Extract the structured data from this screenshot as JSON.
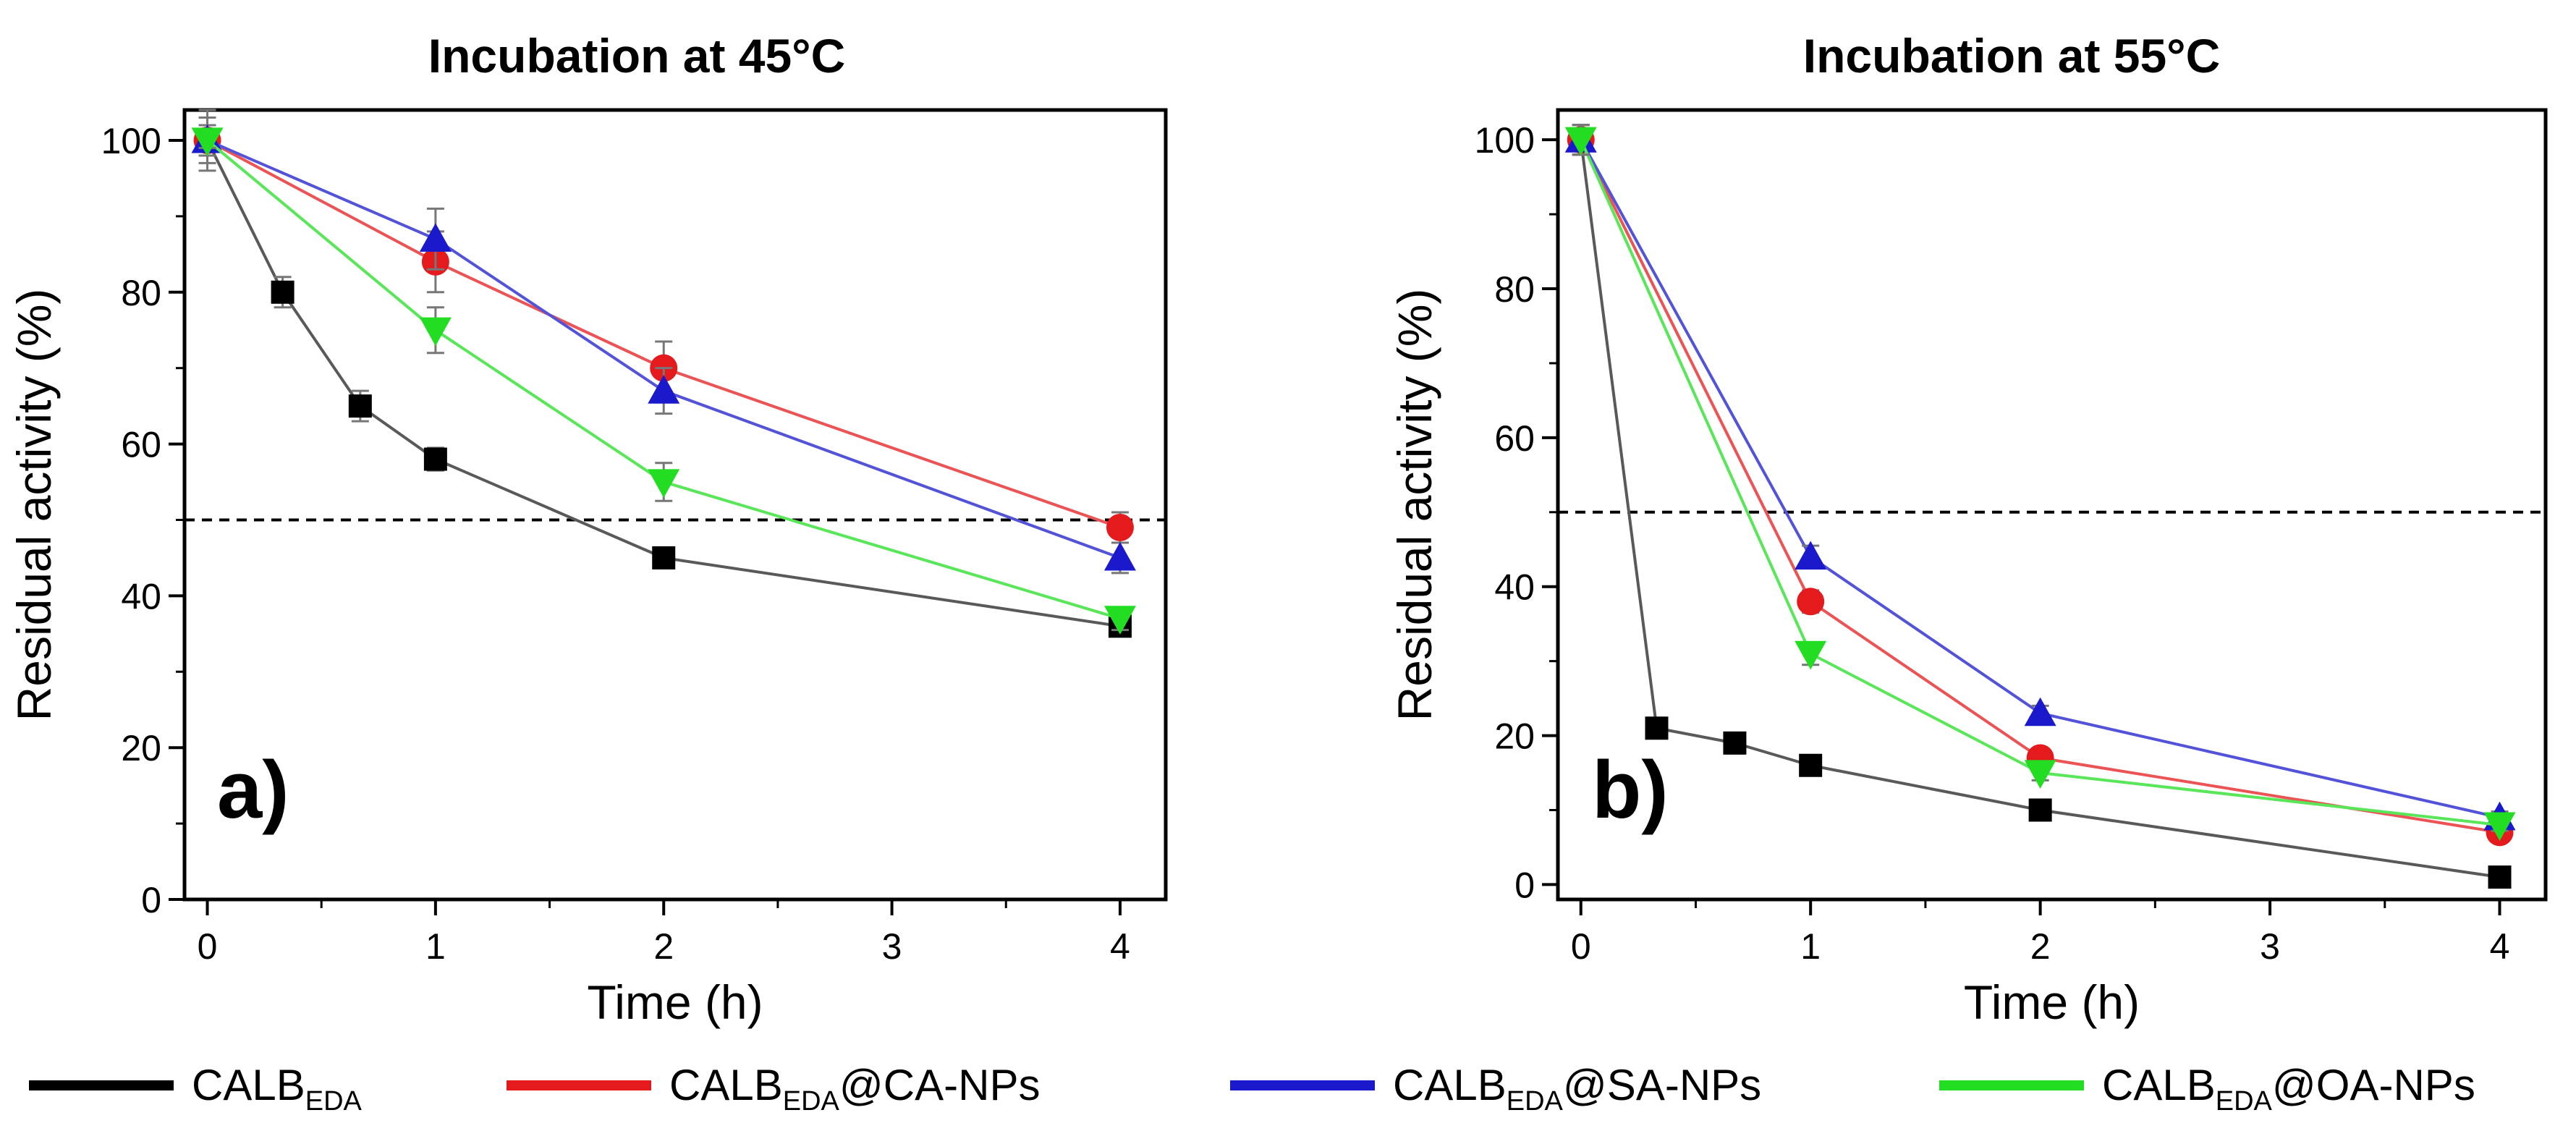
{
  "chart_data": [
    {
      "type": "line",
      "panel_label": "a)",
      "title": "Incubation at 45°C",
      "xlabel": "Time (h)",
      "ylabel": "Residual activity (%)",
      "xlim": [
        -0.1,
        4.2
      ],
      "ylim": [
        0,
        104
      ],
      "xticks": [
        0,
        1,
        2,
        3,
        4
      ],
      "yticks": [
        0,
        20,
        40,
        60,
        80,
        100
      ],
      "threshold": 50,
      "series": [
        {
          "color": "#000000",
          "marker": "square",
          "x": [
            0,
            0.33,
            0.67,
            1,
            2,
            4
          ],
          "y": [
            100,
            80,
            65,
            58,
            45,
            36
          ],
          "err": [
            3,
            2,
            2,
            1.5,
            1,
            1
          ]
        },
        {
          "color": "#e41a1c",
          "marker": "circle",
          "x": [
            0,
            1,
            2,
            4
          ],
          "y": [
            100,
            84,
            70,
            49
          ],
          "err": [
            4,
            4,
            3.5,
            2
          ]
        },
        {
          "color": "#1a1acc",
          "marker": "triangle-up",
          "x": [
            0,
            1,
            2,
            4
          ],
          "y": [
            100,
            87,
            67,
            45
          ],
          "err": [
            2,
            4,
            3,
            2
          ]
        },
        {
          "color": "#22dd22",
          "marker": "triangle-down",
          "x": [
            0,
            1,
            2,
            4
          ],
          "y": [
            100,
            75,
            55,
            37
          ],
          "err": [
            1,
            3,
            2.5,
            1.5
          ]
        }
      ]
    },
    {
      "type": "line",
      "panel_label": "b)",
      "title": "Incubation at 55°C",
      "xlabel": "Time (h)",
      "ylabel": "Residual activity (%)",
      "xlim": [
        -0.1,
        4.2
      ],
      "ylim": [
        -2,
        104
      ],
      "xticks": [
        0,
        1,
        2,
        3,
        4
      ],
      "yticks": [
        0,
        20,
        40,
        60,
        80,
        100
      ],
      "threshold": 50,
      "series": [
        {
          "color": "#000000",
          "marker": "square",
          "x": [
            0,
            0.33,
            0.67,
            1,
            2,
            4
          ],
          "y": [
            100,
            21,
            19,
            16,
            10,
            1
          ],
          "err": [
            2,
            0.8,
            0.8,
            0.8,
            0.8,
            0.5
          ]
        },
        {
          "color": "#e41a1c",
          "marker": "circle",
          "x": [
            0,
            1,
            2,
            4
          ],
          "y": [
            100,
            38,
            17,
            7
          ],
          "err": [
            2,
            1.5,
            1,
            0.8
          ]
        },
        {
          "color": "#1a1acc",
          "marker": "triangle-up",
          "x": [
            0,
            1,
            2,
            4
          ],
          "y": [
            100,
            44,
            23,
            9
          ],
          "err": [
            2,
            1.5,
            1,
            0.8
          ]
        },
        {
          "color": "#22dd22",
          "marker": "triangle-down",
          "x": [
            0,
            1,
            2,
            4
          ],
          "y": [
            100,
            31,
            15,
            8
          ],
          "err": [
            2,
            1.5,
            1,
            0.8
          ]
        }
      ]
    }
  ],
  "legend": {
    "placement": "bottom",
    "items": [
      {
        "color": "#000000",
        "main": "CALB",
        "sub": "EDA",
        "suffix": ""
      },
      {
        "color": "#e41a1c",
        "main": "CALB",
        "sub": "EDA",
        "suffix": "@CA-NPs"
      },
      {
        "color": "#1a1acc",
        "main": "CALB",
        "sub": "EDA",
        "suffix": "@SA-NPs"
      },
      {
        "color": "#22dd22",
        "main": "CALB",
        "sub": "EDA",
        "suffix": "@OA-NPs"
      }
    ]
  }
}
